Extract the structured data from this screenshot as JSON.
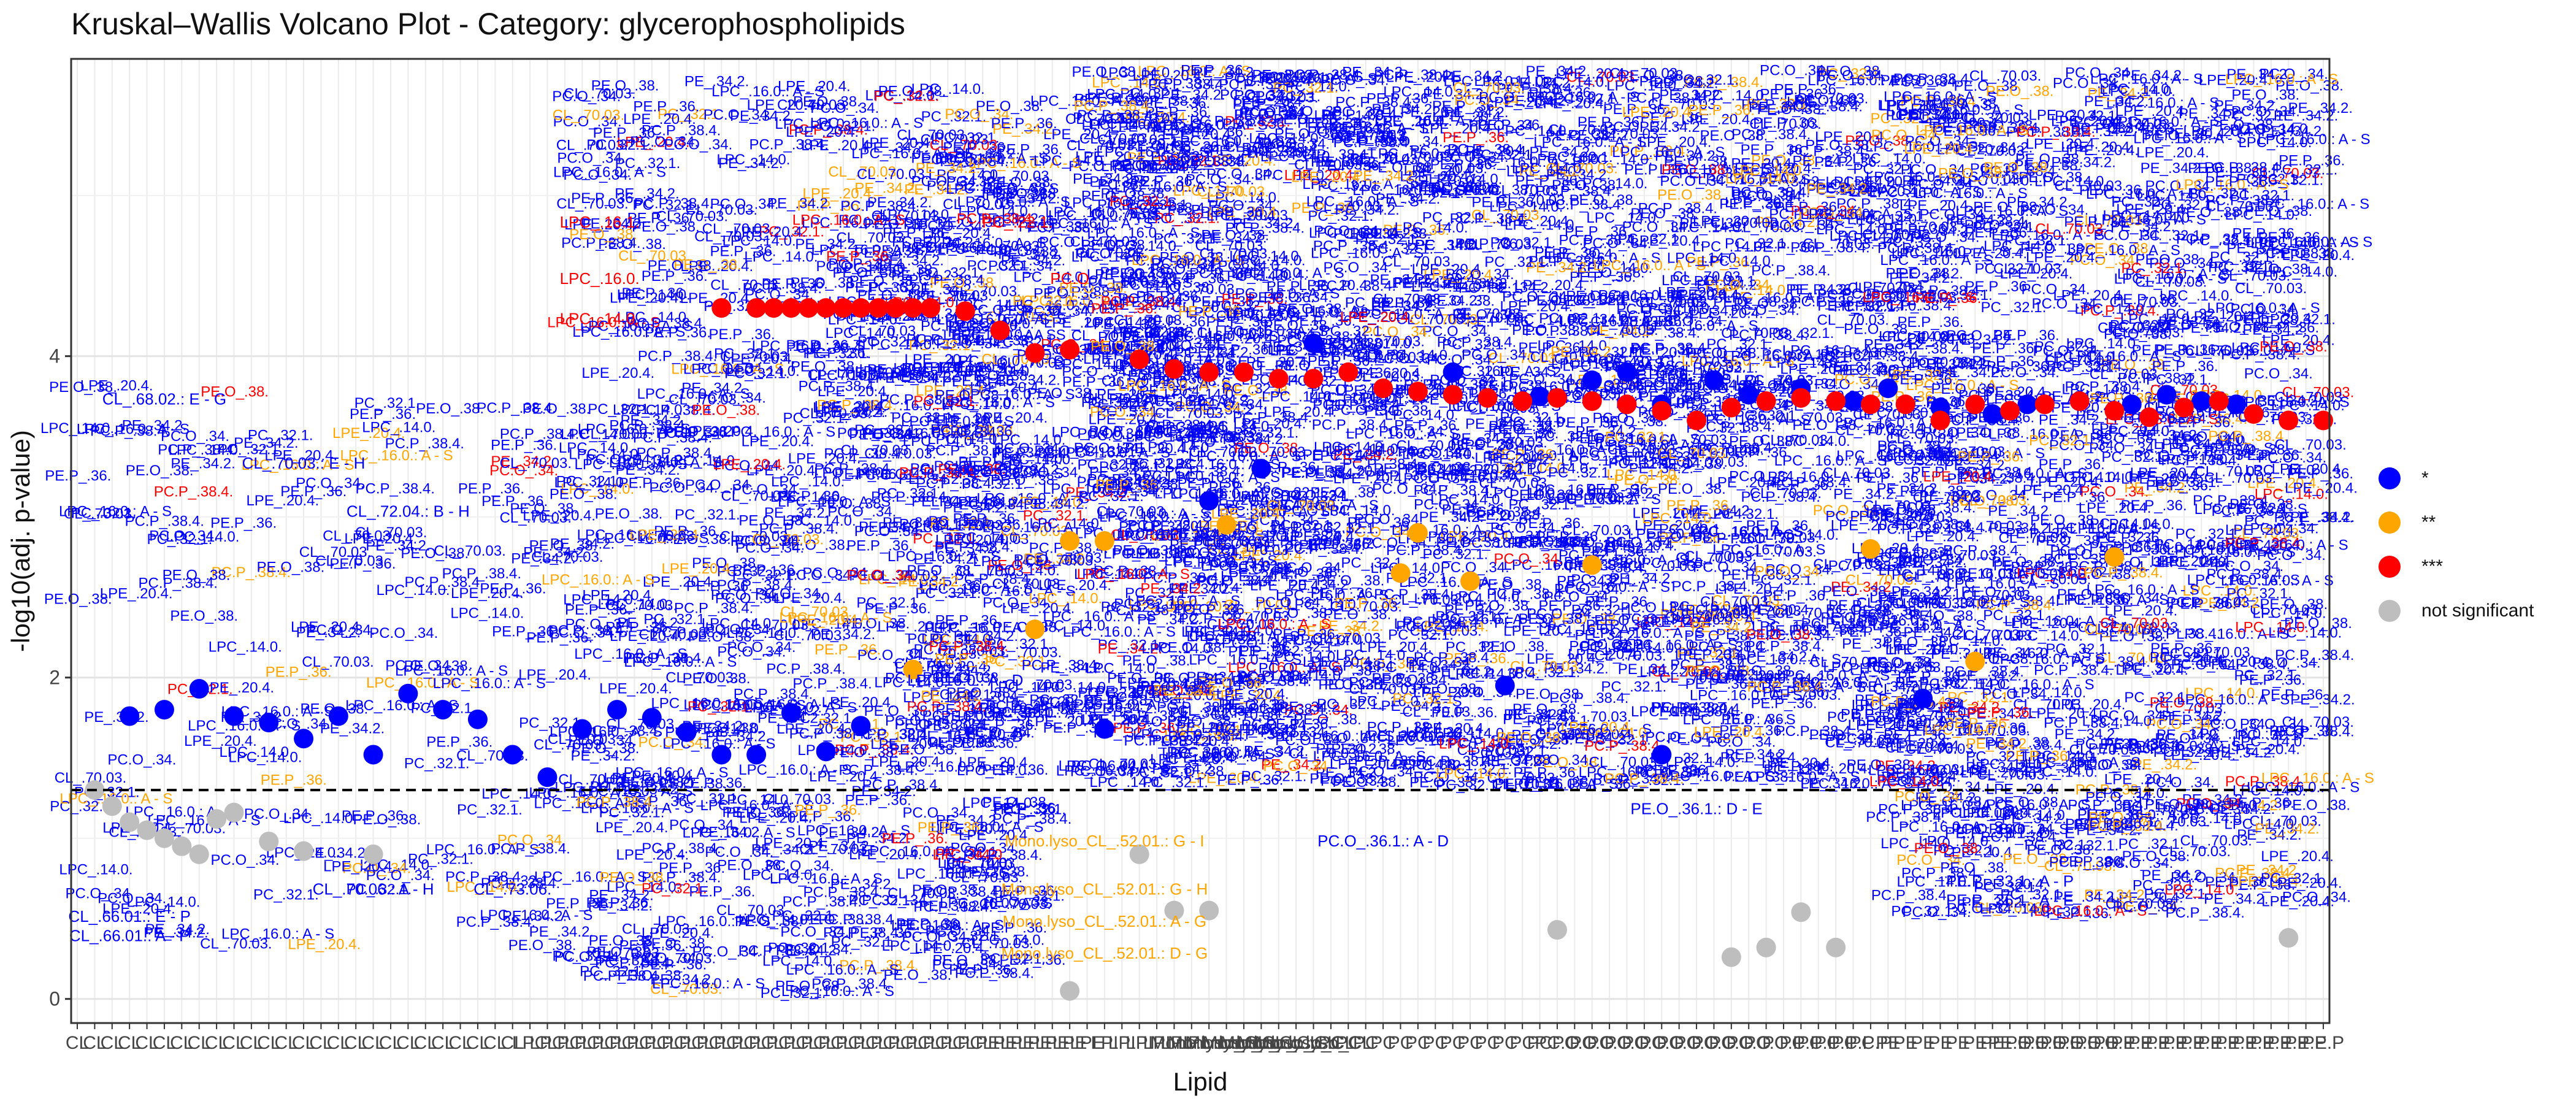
{
  "chart_data": {
    "type": "scatter",
    "title": "Kruskal–Wallis Volcano Plot - Category: glycerophospholipids",
    "xlabel": "Lipid",
    "ylabel": "-log10(adj. p-value)",
    "ylim": [
      -0.15,
      5.85
    ],
    "yticks": [
      0,
      2,
      4
    ],
    "threshold_y": 1.3,
    "grid": true,
    "legend_position": "right",
    "colors": {
      "*": "#0000ff",
      "**": "#ffa500",
      "***": "#ff0000",
      "not significant": "#bebebe"
    },
    "legend": [
      {
        "label": "*",
        "color": "#0000ff"
      },
      {
        "label": "**",
        "color": "#ffa500"
      },
      {
        "label": "***",
        "color": "#ff0000"
      },
      {
        "label": "not significant",
        "color": "#bebebe"
      }
    ],
    "category_count": 130,
    "x_tick_labels": [
      "CL",
      "CL",
      "CL",
      "CL",
      "LPC",
      "LPC",
      "LPC",
      "LPC",
      "LPE",
      "LPI",
      "Mono.lyso_CL",
      "PC",
      "PC",
      "PC.O",
      "PC.O",
      "PC.P",
      "PE",
      "PE.O",
      "PE.P",
      "PE.P"
    ],
    "series": [
      {
        "name": "*",
        "points": [
          [
            4,
            1.76
          ],
          [
            6,
            1.8
          ],
          [
            8,
            1.93
          ],
          [
            10,
            1.76
          ],
          [
            12,
            1.72
          ],
          [
            14,
            1.62
          ],
          [
            16,
            1.76
          ],
          [
            18,
            1.52
          ],
          [
            20,
            1.9
          ],
          [
            22,
            1.8
          ],
          [
            24,
            1.74
          ],
          [
            26,
            1.52
          ],
          [
            28,
            1.38
          ],
          [
            30,
            1.68
          ],
          [
            32,
            1.8
          ],
          [
            34,
            1.75
          ],
          [
            36,
            1.66
          ],
          [
            38,
            1.52
          ],
          [
            40,
            1.52
          ],
          [
            42,
            1.78
          ],
          [
            44,
            1.54
          ],
          [
            46,
            1.7
          ],
          [
            60,
            1.68
          ],
          [
            66,
            3.1
          ],
          [
            69,
            3.3
          ],
          [
            72,
            4.08
          ],
          [
            80,
            3.9
          ],
          [
            85,
            3.75
          ],
          [
            88,
            3.85
          ],
          [
            90,
            3.9
          ],
          [
            92,
            3.7
          ],
          [
            95,
            3.85
          ],
          [
            97,
            3.76
          ],
          [
            100,
            3.8
          ],
          [
            103,
            3.72
          ],
          [
            105,
            3.8
          ],
          [
            108,
            3.68
          ],
          [
            111,
            3.64
          ],
          [
            113,
            3.7
          ],
          [
            116,
            3.72
          ],
          [
            119,
            3.7
          ],
          [
            121,
            3.76
          ],
          [
            123,
            3.72
          ],
          [
            125,
            3.7
          ],
          [
            83,
            1.95
          ],
          [
            92,
            1.52
          ],
          [
            107,
            1.87
          ]
        ]
      },
      {
        "name": "**",
        "points": [
          [
            49,
            2.05
          ],
          [
            56,
            2.3
          ],
          [
            58,
            2.85
          ],
          [
            60,
            2.85
          ],
          [
            67,
            2.95
          ],
          [
            78,
            2.9
          ],
          [
            81,
            2.6
          ],
          [
            88,
            2.7
          ],
          [
            104,
            2.8
          ],
          [
            110,
            2.1
          ],
          [
            118,
            2.75
          ],
          [
            77,
            2.65
          ]
        ]
      },
      {
        "name": "***",
        "points": [
          [
            38,
            4.3
          ],
          [
            40,
            4.3
          ],
          [
            41,
            4.3
          ],
          [
            42,
            4.3
          ],
          [
            43,
            4.3
          ],
          [
            44,
            4.3
          ],
          [
            45,
            4.3
          ],
          [
            46,
            4.3
          ],
          [
            47,
            4.3
          ],
          [
            48,
            4.3
          ],
          [
            49,
            4.3
          ],
          [
            50,
            4.3
          ],
          [
            52,
            4.28
          ],
          [
            54,
            4.16
          ],
          [
            56,
            4.02
          ],
          [
            58,
            4.04
          ],
          [
            62,
            3.98
          ],
          [
            64,
            3.92
          ],
          [
            66,
            3.9
          ],
          [
            68,
            3.9
          ],
          [
            70,
            3.86
          ],
          [
            72,
            3.86
          ],
          [
            74,
            3.9
          ],
          [
            76,
            3.8
          ],
          [
            78,
            3.78
          ],
          [
            80,
            3.76
          ],
          [
            82,
            3.74
          ],
          [
            84,
            3.72
          ],
          [
            86,
            3.74
          ],
          [
            88,
            3.72
          ],
          [
            90,
            3.7
          ],
          [
            92,
            3.66
          ],
          [
            94,
            3.6
          ],
          [
            96,
            3.68
          ],
          [
            98,
            3.72
          ],
          [
            100,
            3.74
          ],
          [
            102,
            3.72
          ],
          [
            104,
            3.7
          ],
          [
            106,
            3.7
          ],
          [
            108,
            3.6
          ],
          [
            110,
            3.7
          ],
          [
            112,
            3.66
          ],
          [
            114,
            3.7
          ],
          [
            116,
            3.72
          ],
          [
            118,
            3.66
          ],
          [
            120,
            3.62
          ],
          [
            122,
            3.68
          ],
          [
            124,
            3.72
          ],
          [
            126,
            3.64
          ],
          [
            128,
            3.6
          ],
          [
            130,
            3.6
          ]
        ]
      },
      {
        "name": "not significant",
        "points": [
          [
            2,
            1.3
          ],
          [
            3,
            1.2
          ],
          [
            4,
            1.1
          ],
          [
            5,
            1.05
          ],
          [
            6,
            1.0
          ],
          [
            7,
            0.95
          ],
          [
            8,
            0.9
          ],
          [
            9,
            1.12
          ],
          [
            10,
            1.16
          ],
          [
            12,
            0.98
          ],
          [
            14,
            0.92
          ],
          [
            18,
            0.9
          ],
          [
            58,
            0.05
          ],
          [
            62,
            0.9
          ],
          [
            64,
            0.55
          ],
          [
            66,
            0.55
          ],
          [
            86,
            0.43
          ],
          [
            96,
            0.26
          ],
          [
            98,
            0.32
          ],
          [
            100,
            0.54
          ],
          [
            102,
            0.32
          ],
          [
            128,
            0.38
          ]
        ]
      }
    ],
    "annotations": [
      {
        "text": "LPC_.16.1.",
        "x": 31,
        "y": 4.8,
        "color": "#ff0000"
      },
      {
        "text": "LPC_.16.0.",
        "x": 31,
        "y": 4.45,
        "color": "#ff0000"
      },
      {
        "text": "LPC_.14.0.",
        "x": 31,
        "y": 4.2,
        "color": "#ff0000"
      },
      {
        "text": "PC_.22.1.",
        "x": 55,
        "y": 4.8,
        "color": "#ff0000"
      },
      {
        "text": "PC.O",
        "x": 58,
        "y": 4.45,
        "color": "#ff0000"
      },
      {
        "text": "CL_.68.02.: E - G",
        "x": 6,
        "y": 3.7,
        "color": "#0000ff"
      },
      {
        "text": "CL_.70.03.: E - H",
        "x": 14,
        "y": 3.3,
        "color": "#0000ff"
      },
      {
        "text": "CL_.72.04.: B - H",
        "x": 20,
        "y": 3.0,
        "color": "#0000ff"
      },
      {
        "text": "CL_.70.06.: A - H",
        "x": 18,
        "y": 0.65,
        "color": "#0000ff"
      },
      {
        "text": "CL_.73.06.",
        "x": 26,
        "y": 0.65,
        "color": "#0000ff"
      },
      {
        "text": "CL_.66.01.: A - P",
        "x": 4,
        "y": 0.36,
        "color": "#0000ff"
      },
      {
        "text": "CL_.66.01.: E - P",
        "x": 4,
        "y": 0.48,
        "color": "#0000ff"
      },
      {
        "text": "LPI_.16.0.: A - D",
        "x": 52,
        "y": 1.95,
        "color": "#0000ff"
      },
      {
        "text": "LPI_.16.0.: A - D",
        "x": 52,
        "y": 1.6,
        "color": "#0000ff"
      },
      {
        "text": "Mono.lyso_CL_.52.01.: G - I",
        "x": 60,
        "y": 0.95,
        "color": "#ffa500"
      },
      {
        "text": "Mono.lyso_CL_.52.01.: G - H",
        "x": 60,
        "y": 0.65,
        "color": "#ffa500"
      },
      {
        "text": "Mono.lyso_CL_.52.01.: A - G",
        "x": 60,
        "y": 0.45,
        "color": "#ffa500"
      },
      {
        "text": "Mono.lyso_CL_.52.01.: D - G",
        "x": 60,
        "y": 0.25,
        "color": "#ffa500"
      },
      {
        "text": "PC_.30.0.: I",
        "x": 66,
        "y": 1.5,
        "color": "#0000ff"
      },
      {
        "text": "PC.O_.36.1.: A - D",
        "x": 76,
        "y": 0.95,
        "color": "#0000ff"
      },
      {
        "text": "PE.O_.36.1.: D - E",
        "x": 94,
        "y": 1.15,
        "color": "#0000ff"
      },
      {
        "text": "PE.P_.33.1.: D - E",
        "x": 112,
        "y": 1.0,
        "color": "#0000ff"
      },
      {
        "text": "PE.P_.33.1.: A - P",
        "x": 112,
        "y": 0.7,
        "color": "#0000ff"
      },
      {
        "text": "PE.P_.36.1.: A - E",
        "x": 112,
        "y": 0.58,
        "color": "#0000ff"
      }
    ]
  }
}
